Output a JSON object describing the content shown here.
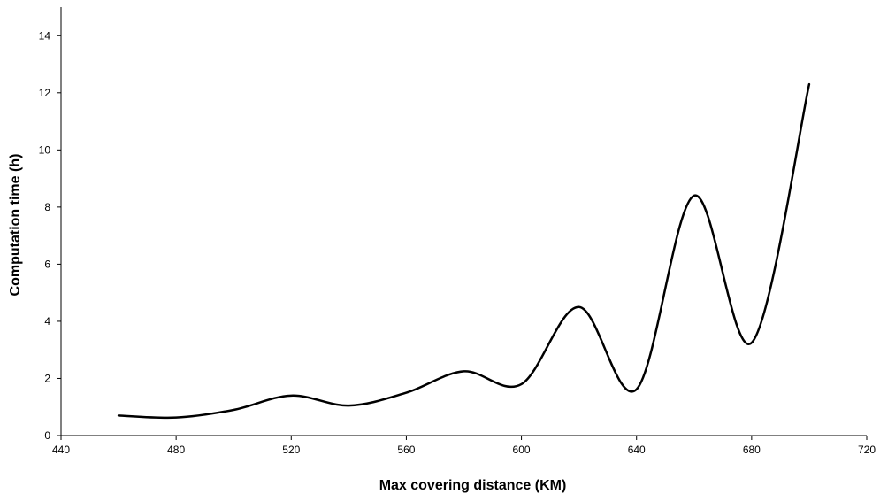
{
  "chart_data": {
    "type": "line",
    "title": "",
    "xlabel": "Max covering distance (KM)",
    "ylabel": "Computation time (h)",
    "xlim": [
      440,
      720
    ],
    "ylim": [
      0,
      15
    ],
    "x_ticks": [
      440,
      480,
      520,
      560,
      600,
      640,
      680,
      720
    ],
    "y_ticks": [
      0,
      2,
      4,
      6,
      8,
      10,
      12,
      14
    ],
    "grid": false,
    "legend": "none",
    "line_color": "#000000",
    "series": [
      {
        "x": [
          460,
          480,
          500,
          520,
          540,
          560,
          580,
          600,
          620,
          640,
          660,
          680,
          700
        ],
        "y": [
          0.7,
          0.63,
          0.9,
          1.4,
          1.05,
          1.5,
          2.25,
          1.8,
          4.5,
          1.62,
          8.4,
          3.25,
          12.3
        ]
      }
    ]
  }
}
